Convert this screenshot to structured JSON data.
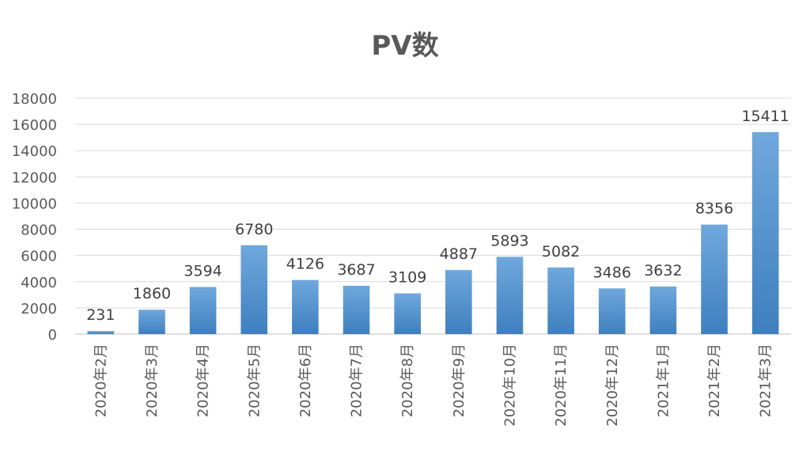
{
  "chart_data": {
    "type": "bar",
    "title": "PV数",
    "categories": [
      "2020年2月",
      "2020年3月",
      "2020年4月",
      "2020年5月",
      "2020年6月",
      "2020年7月",
      "2020年8月",
      "2020年9月",
      "2020年10月",
      "2020年11月",
      "2020年12月",
      "2021年1月",
      "2021年2月",
      "2021年3月"
    ],
    "values": [
      231,
      1860,
      3594,
      6780,
      4126,
      3687,
      3109,
      4887,
      5893,
      5082,
      3486,
      3632,
      8356,
      15411
    ],
    "yticks": [
      "0",
      "2000",
      "4000",
      "6000",
      "8000",
      "10000",
      "12000",
      "14000",
      "16000",
      "18000"
    ],
    "ylim": [
      0,
      18000
    ],
    "grid": true,
    "bar_color": "#5b9bd5",
    "bar_color_light": "#6fa8dc",
    "bar_color_dark": "#3f7fbf"
  }
}
